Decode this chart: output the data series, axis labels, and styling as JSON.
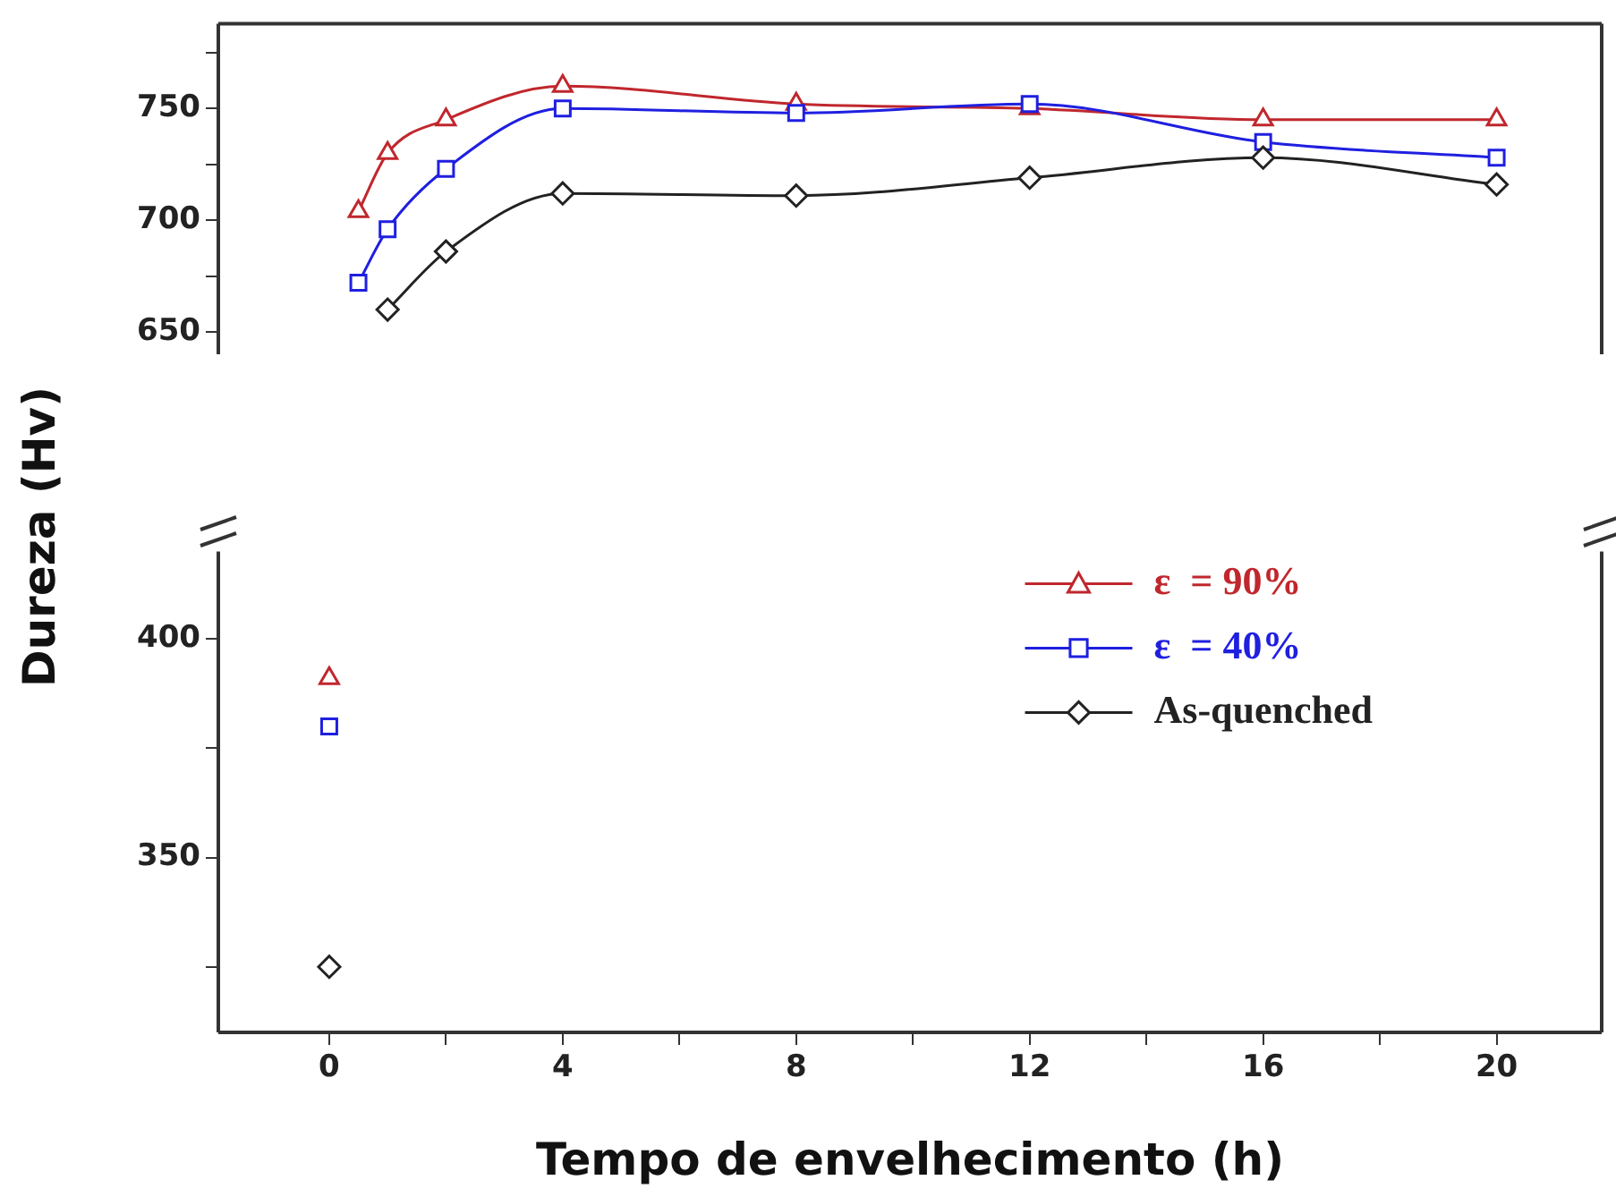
{
  "chart_data": [
    {
      "type": "line",
      "ylabel": "Dureza (Hv)",
      "xlim": [
        -1.9,
        21.8
      ],
      "xticks": [
        0,
        4,
        8,
        12,
        16,
        20
      ],
      "ylim": [
        640,
        788
      ],
      "yticks": [
        650,
        {
          "value": 675,
          "label": null
        },
        700,
        {
          "value": 725,
          "label": null
        },
        750,
        {
          "value": 775,
          "label": null
        }
      ],
      "tick_labels": "y",
      "grid": false,
      "legend": false,
      "series": [
        {
          "color": "#c0272d",
          "marker": "triangle",
          "x": [
            0.5,
            1,
            2,
            4,
            8,
            12,
            16,
            20
          ],
          "values": [
            704,
            730,
            745,
            760,
            752,
            750,
            745,
            745
          ]
        },
        {
          "color": "#1f1fe0",
          "marker": "square",
          "x": [
            0.5,
            1,
            2,
            4,
            8,
            12,
            16,
            20
          ],
          "values": [
            672,
            696,
            723,
            750,
            748,
            752,
            735,
            728
          ]
        },
        {
          "color": "#222222",
          "marker": "diamond",
          "x": [
            1,
            2,
            4,
            8,
            12,
            16,
            20
          ],
          "values": [
            660,
            686,
            712,
            711,
            719,
            728,
            716
          ]
        }
      ]
    },
    {
      "type": "line",
      "xlabel": "Tempo de envelhecimento (h)",
      "xlim": [
        -1.9,
        21.8
      ],
      "xticks": [
        0,
        {
          "value": 2,
          "label": null
        },
        4,
        {
          "value": 6,
          "label": null
        },
        8,
        {
          "value": 10,
          "label": null
        },
        12,
        {
          "value": 14,
          "label": null
        },
        16,
        {
          "value": 18,
          "label": null
        },
        20
      ],
      "ylim": [
        310,
        420
      ],
      "yticks": [
        {
          "value": 325,
          "label": null
        },
        350,
        {
          "value": 375,
          "label": null
        },
        400
      ],
      "grid": false,
      "legend": "top right",
      "series": [
        {
          "name": "ε  = 90%",
          "color": "#c0272d",
          "marker": "triangle",
          "x": [
            0
          ],
          "values": [
            391
          ]
        },
        {
          "name": "ε  = 40%",
          "color": "#1f1fe0",
          "marker": "square",
          "x": [
            0
          ],
          "values": [
            380
          ]
        },
        {
          "name": "As-quenched",
          "color": "#222222",
          "marker": "diamond",
          "x": [
            0
          ],
          "values": [
            325
          ]
        }
      ]
    }
  ]
}
